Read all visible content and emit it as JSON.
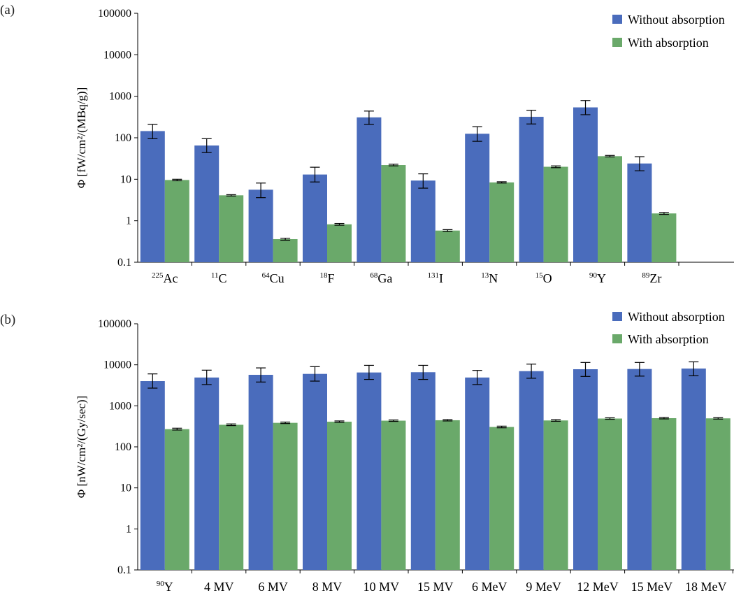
{
  "chart_data": [
    {
      "type": "bar",
      "panel_label": "(a)",
      "y_scale": "log",
      "ylim": [
        0.1,
        100000
      ],
      "y_ticks": [
        "0.1",
        "1",
        "10",
        "100",
        "1000",
        "10000",
        "100000"
      ],
      "y_tick_values": [
        0.1,
        1,
        10,
        100,
        1000,
        10000,
        100000
      ],
      "ylabel": "Φ [fW/cm²/(MBq/g)]",
      "legend_position": "top-right",
      "categories": [
        {
          "sup": "225",
          "base": "Ac"
        },
        {
          "sup": "11",
          "base": "C"
        },
        {
          "sup": "64",
          "base": "Cu"
        },
        {
          "sup": "18",
          "base": "F"
        },
        {
          "sup": "68",
          "base": "Ga"
        },
        {
          "sup": "131",
          "base": "I"
        },
        {
          "sup": "13",
          "base": "N"
        },
        {
          "sup": "15",
          "base": "O"
        },
        {
          "sup": "90",
          "base": "Y"
        },
        {
          "sup": "89",
          "base": "Zr"
        }
      ],
      "series": [
        {
          "name": "Without absorption",
          "color": "#4a6cbc",
          "values": [
            145,
            65,
            5.6,
            13,
            310,
            9.3,
            125,
            320,
            540,
            24
          ],
          "err_low": [
            95,
            44,
            3.6,
            8.6,
            210,
            6.1,
            82,
            215,
            360,
            16
          ],
          "err_high": [
            210,
            95,
            8.1,
            19.5,
            440,
            13.5,
            185,
            460,
            790,
            35
          ]
        },
        {
          "name": "With absorption",
          "color": "#6aa96a",
          "values": [
            9.6,
            4.1,
            0.36,
            0.82,
            22,
            0.58,
            8.4,
            20,
            36,
            1.5
          ],
          "err_low": [
            9.2,
            3.95,
            0.34,
            0.78,
            21,
            0.55,
            8.1,
            19,
            34.5,
            1.42
          ],
          "err_high": [
            10,
            4.25,
            0.38,
            0.86,
            23,
            0.61,
            8.7,
            21,
            37.5,
            1.58
          ]
        }
      ]
    },
    {
      "type": "bar",
      "panel_label": "(b)",
      "y_scale": "log",
      "ylim": [
        0.1,
        100000
      ],
      "y_ticks": [
        "0.1",
        "1",
        "10",
        "100",
        "1000",
        "10000",
        "100000"
      ],
      "y_tick_values": [
        0.1,
        1,
        10,
        100,
        1000,
        10000,
        100000
      ],
      "ylabel": "Φ [nW/cm²/(Gy/sec)]",
      "legend_position": "top-right",
      "categories": [
        {
          "sup": "90",
          "base": "Y"
        },
        {
          "sup": "",
          "base": "4 MV"
        },
        {
          "sup": "",
          "base": "6 MV"
        },
        {
          "sup": "",
          "base": "8 MV"
        },
        {
          "sup": "",
          "base": "10 MV"
        },
        {
          "sup": "",
          "base": "15 MV"
        },
        {
          "sup": "",
          "base": "6 MeV"
        },
        {
          "sup": "",
          "base": "9 MeV"
        },
        {
          "sup": "",
          "base": "12 MeV"
        },
        {
          "sup": "",
          "base": "15 MeV"
        },
        {
          "sup": "",
          "base": "18 MeV"
        }
      ],
      "series": [
        {
          "name": "Without absorption",
          "color": "#4a6cbc",
          "values": [
            4000,
            4900,
            5700,
            6000,
            6500,
            6600,
            4900,
            7000,
            7800,
            7900,
            8100
          ],
          "err_low": [
            2700,
            3300,
            3800,
            4000,
            4400,
            4400,
            3300,
            4700,
            5200,
            5300,
            5400
          ],
          "err_high": [
            6000,
            7400,
            8400,
            9000,
            9700,
            9700,
            7300,
            10400,
            11400,
            11400,
            11800
          ]
        },
        {
          "name": "With absorption",
          "color": "#6aa96a",
          "values": [
            270,
            345,
            385,
            410,
            435,
            445,
            305,
            440,
            490,
            500,
            495
          ],
          "err_low": [
            257,
            330,
            370,
            395,
            418,
            428,
            292,
            420,
            470,
            480,
            475
          ],
          "err_high": [
            285,
            362,
            402,
            428,
            452,
            462,
            320,
            460,
            510,
            520,
            515
          ]
        }
      ]
    }
  ]
}
